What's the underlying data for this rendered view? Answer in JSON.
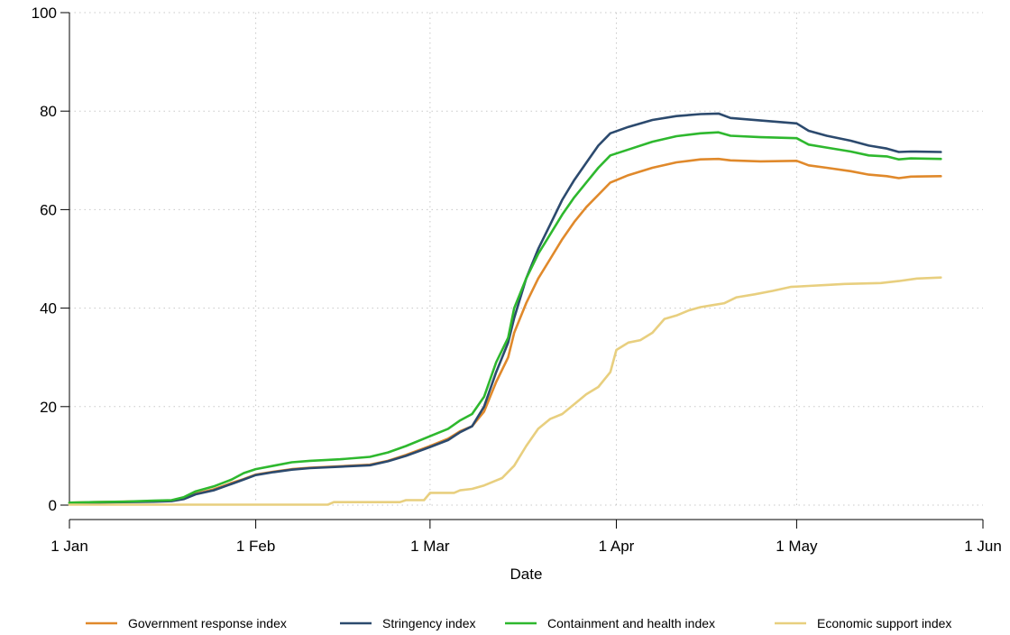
{
  "chart_data": {
    "type": "line",
    "title": "",
    "xlabel": "Date",
    "ylabel": "",
    "xlim": [
      "2020-01-01",
      "2020-06-01"
    ],
    "ylim": [
      0,
      100
    ],
    "grid": true,
    "legend_position": "bottom",
    "x_ticks": [
      {
        "date": "2020-01-01",
        "label": "1 Jan"
      },
      {
        "date": "2020-02-01",
        "label": "1 Feb"
      },
      {
        "date": "2020-03-01",
        "label": "1 Mar"
      },
      {
        "date": "2020-04-01",
        "label": "1 Apr"
      },
      {
        "date": "2020-05-01",
        "label": "1 May"
      },
      {
        "date": "2020-06-01",
        "label": "1 Jun"
      }
    ],
    "y_ticks": [
      0,
      20,
      40,
      60,
      80,
      100
    ],
    "series": [
      {
        "name": "Government response index",
        "color": "#e0892b",
        "points": [
          [
            "2020-01-01",
            0.5
          ],
          [
            "2020-01-05",
            0.6
          ],
          [
            "2020-01-10",
            0.7
          ],
          [
            "2020-01-15",
            0.8
          ],
          [
            "2020-01-18",
            0.9
          ],
          [
            "2020-01-20",
            1.3
          ],
          [
            "2020-01-22",
            2.3
          ],
          [
            "2020-01-25",
            3.2
          ],
          [
            "2020-01-28",
            4.5
          ],
          [
            "2020-01-30",
            5.3
          ],
          [
            "2020-02-01",
            6.2
          ],
          [
            "2020-02-04",
            6.8
          ],
          [
            "2020-02-07",
            7.3
          ],
          [
            "2020-02-10",
            7.6
          ],
          [
            "2020-02-15",
            7.9
          ],
          [
            "2020-02-20",
            8.2
          ],
          [
            "2020-02-23",
            9.0
          ],
          [
            "2020-02-26",
            10.2
          ],
          [
            "2020-03-01",
            12.0
          ],
          [
            "2020-03-04",
            13.5
          ],
          [
            "2020-03-06",
            15.0
          ],
          [
            "2020-03-08",
            16.0
          ],
          [
            "2020-03-10",
            19.0
          ],
          [
            "2020-03-12",
            25.0
          ],
          [
            "2020-03-14",
            30.0
          ],
          [
            "2020-03-15",
            35.0
          ],
          [
            "2020-03-17",
            41.0
          ],
          [
            "2020-03-19",
            46.0
          ],
          [
            "2020-03-21",
            50.0
          ],
          [
            "2020-03-23",
            54.0
          ],
          [
            "2020-03-25",
            57.5
          ],
          [
            "2020-03-27",
            60.5
          ],
          [
            "2020-03-29",
            63.0
          ],
          [
            "2020-03-31",
            65.5
          ],
          [
            "2020-04-03",
            67.0
          ],
          [
            "2020-04-07",
            68.5
          ],
          [
            "2020-04-11",
            69.6
          ],
          [
            "2020-04-15",
            70.2
          ],
          [
            "2020-04-18",
            70.3
          ],
          [
            "2020-04-20",
            70.0
          ],
          [
            "2020-04-25",
            69.8
          ],
          [
            "2020-05-01",
            69.9
          ],
          [
            "2020-05-03",
            69.0
          ],
          [
            "2020-05-06",
            68.5
          ],
          [
            "2020-05-10",
            67.8
          ],
          [
            "2020-05-13",
            67.1
          ],
          [
            "2020-05-16",
            66.8
          ],
          [
            "2020-05-18",
            66.4
          ],
          [
            "2020-05-20",
            66.7
          ],
          [
            "2020-05-25",
            66.8
          ]
        ]
      },
      {
        "name": "Stringency index",
        "color": "#2c4a6e",
        "points": [
          [
            "2020-01-01",
            0.4
          ],
          [
            "2020-01-05",
            0.5
          ],
          [
            "2020-01-10",
            0.6
          ],
          [
            "2020-01-15",
            0.7
          ],
          [
            "2020-01-18",
            0.8
          ],
          [
            "2020-01-20",
            1.2
          ],
          [
            "2020-01-22",
            2.2
          ],
          [
            "2020-01-25",
            3.0
          ],
          [
            "2020-01-28",
            4.3
          ],
          [
            "2020-01-30",
            5.2
          ],
          [
            "2020-02-01",
            6.1
          ],
          [
            "2020-02-04",
            6.7
          ],
          [
            "2020-02-07",
            7.2
          ],
          [
            "2020-02-10",
            7.5
          ],
          [
            "2020-02-15",
            7.8
          ],
          [
            "2020-02-20",
            8.1
          ],
          [
            "2020-02-23",
            8.9
          ],
          [
            "2020-02-26",
            10.0
          ],
          [
            "2020-03-01",
            11.8
          ],
          [
            "2020-03-04",
            13.2
          ],
          [
            "2020-03-06",
            14.8
          ],
          [
            "2020-03-08",
            16.0
          ],
          [
            "2020-03-10",
            20.0
          ],
          [
            "2020-03-12",
            27.0
          ],
          [
            "2020-03-14",
            33.0
          ],
          [
            "2020-03-15",
            38.0
          ],
          [
            "2020-03-17",
            46.0
          ],
          [
            "2020-03-19",
            52.0
          ],
          [
            "2020-03-21",
            57.0
          ],
          [
            "2020-03-23",
            62.0
          ],
          [
            "2020-03-25",
            66.0
          ],
          [
            "2020-03-27",
            69.5
          ],
          [
            "2020-03-29",
            73.0
          ],
          [
            "2020-03-31",
            75.5
          ],
          [
            "2020-04-03",
            76.8
          ],
          [
            "2020-04-07",
            78.2
          ],
          [
            "2020-04-11",
            79.0
          ],
          [
            "2020-04-15",
            79.4
          ],
          [
            "2020-04-18",
            79.5
          ],
          [
            "2020-04-20",
            78.6
          ],
          [
            "2020-04-25",
            78.1
          ],
          [
            "2020-05-01",
            77.5
          ],
          [
            "2020-05-03",
            76.0
          ],
          [
            "2020-05-06",
            75.0
          ],
          [
            "2020-05-10",
            74.0
          ],
          [
            "2020-05-13",
            73.0
          ],
          [
            "2020-05-16",
            72.4
          ],
          [
            "2020-05-18",
            71.7
          ],
          [
            "2020-05-20",
            71.8
          ],
          [
            "2020-05-25",
            71.7
          ]
        ]
      },
      {
        "name": "Containment and health index",
        "color": "#2eb82e",
        "points": [
          [
            "2020-01-01",
            0.5
          ],
          [
            "2020-01-05",
            0.6
          ],
          [
            "2020-01-10",
            0.7
          ],
          [
            "2020-01-15",
            0.9
          ],
          [
            "2020-01-18",
            1.0
          ],
          [
            "2020-01-20",
            1.6
          ],
          [
            "2020-01-22",
            2.8
          ],
          [
            "2020-01-25",
            3.8
          ],
          [
            "2020-01-28",
            5.2
          ],
          [
            "2020-01-30",
            6.5
          ],
          [
            "2020-02-01",
            7.3
          ],
          [
            "2020-02-04",
            8.0
          ],
          [
            "2020-02-07",
            8.7
          ],
          [
            "2020-02-10",
            9.0
          ],
          [
            "2020-02-15",
            9.3
          ],
          [
            "2020-02-20",
            9.8
          ],
          [
            "2020-02-23",
            10.7
          ],
          [
            "2020-02-26",
            12.0
          ],
          [
            "2020-03-01",
            14.0
          ],
          [
            "2020-03-04",
            15.5
          ],
          [
            "2020-03-06",
            17.2
          ],
          [
            "2020-03-08",
            18.5
          ],
          [
            "2020-03-10",
            22.0
          ],
          [
            "2020-03-12",
            29.0
          ],
          [
            "2020-03-14",
            34.0
          ],
          [
            "2020-03-15",
            40.0
          ],
          [
            "2020-03-17",
            46.0
          ],
          [
            "2020-03-19",
            51.0
          ],
          [
            "2020-03-21",
            55.0
          ],
          [
            "2020-03-23",
            59.0
          ],
          [
            "2020-03-25",
            62.5
          ],
          [
            "2020-03-27",
            65.5
          ],
          [
            "2020-03-29",
            68.5
          ],
          [
            "2020-03-31",
            71.0
          ],
          [
            "2020-04-03",
            72.2
          ],
          [
            "2020-04-07",
            73.8
          ],
          [
            "2020-04-11",
            74.9
          ],
          [
            "2020-04-15",
            75.5
          ],
          [
            "2020-04-18",
            75.7
          ],
          [
            "2020-04-20",
            75.0
          ],
          [
            "2020-04-25",
            74.7
          ],
          [
            "2020-05-01",
            74.5
          ],
          [
            "2020-05-03",
            73.2
          ],
          [
            "2020-05-06",
            72.6
          ],
          [
            "2020-05-10",
            71.8
          ],
          [
            "2020-05-13",
            71.0
          ],
          [
            "2020-05-16",
            70.8
          ],
          [
            "2020-05-18",
            70.2
          ],
          [
            "2020-05-20",
            70.4
          ],
          [
            "2020-05-25",
            70.3
          ]
        ]
      },
      {
        "name": "Economic support index",
        "color": "#e8cf7f",
        "points": [
          [
            "2020-01-01",
            0.1
          ],
          [
            "2020-02-13",
            0.1
          ],
          [
            "2020-02-14",
            0.6
          ],
          [
            "2020-02-25",
            0.6
          ],
          [
            "2020-02-26",
            1.0
          ],
          [
            "2020-02-29",
            1.0
          ],
          [
            "2020-03-01",
            2.5
          ],
          [
            "2020-03-05",
            2.5
          ],
          [
            "2020-03-06",
            3.0
          ],
          [
            "2020-03-08",
            3.3
          ],
          [
            "2020-03-10",
            4.0
          ],
          [
            "2020-03-12",
            5.0
          ],
          [
            "2020-03-13",
            5.5
          ],
          [
            "2020-03-15",
            8.0
          ],
          [
            "2020-03-17",
            12.0
          ],
          [
            "2020-03-19",
            15.5
          ],
          [
            "2020-03-21",
            17.5
          ],
          [
            "2020-03-23",
            18.5
          ],
          [
            "2020-03-25",
            20.5
          ],
          [
            "2020-03-27",
            22.5
          ],
          [
            "2020-03-29",
            24.0
          ],
          [
            "2020-03-31",
            27.0
          ],
          [
            "2020-04-01",
            31.5
          ],
          [
            "2020-04-03",
            33.0
          ],
          [
            "2020-04-05",
            33.5
          ],
          [
            "2020-04-07",
            35.0
          ],
          [
            "2020-04-09",
            37.8
          ],
          [
            "2020-04-11",
            38.5
          ],
          [
            "2020-04-13",
            39.5
          ],
          [
            "2020-04-15",
            40.2
          ],
          [
            "2020-04-17",
            40.6
          ],
          [
            "2020-04-19",
            41.0
          ],
          [
            "2020-04-21",
            42.2
          ],
          [
            "2020-04-24",
            42.8
          ],
          [
            "2020-04-27",
            43.5
          ],
          [
            "2020-04-30",
            44.3
          ],
          [
            "2020-05-03",
            44.5
          ],
          [
            "2020-05-06",
            44.7
          ],
          [
            "2020-05-09",
            44.9
          ],
          [
            "2020-05-12",
            45.0
          ],
          [
            "2020-05-15",
            45.1
          ],
          [
            "2020-05-18",
            45.5
          ],
          [
            "2020-05-21",
            46.0
          ],
          [
            "2020-05-25",
            46.2
          ]
        ]
      }
    ]
  }
}
